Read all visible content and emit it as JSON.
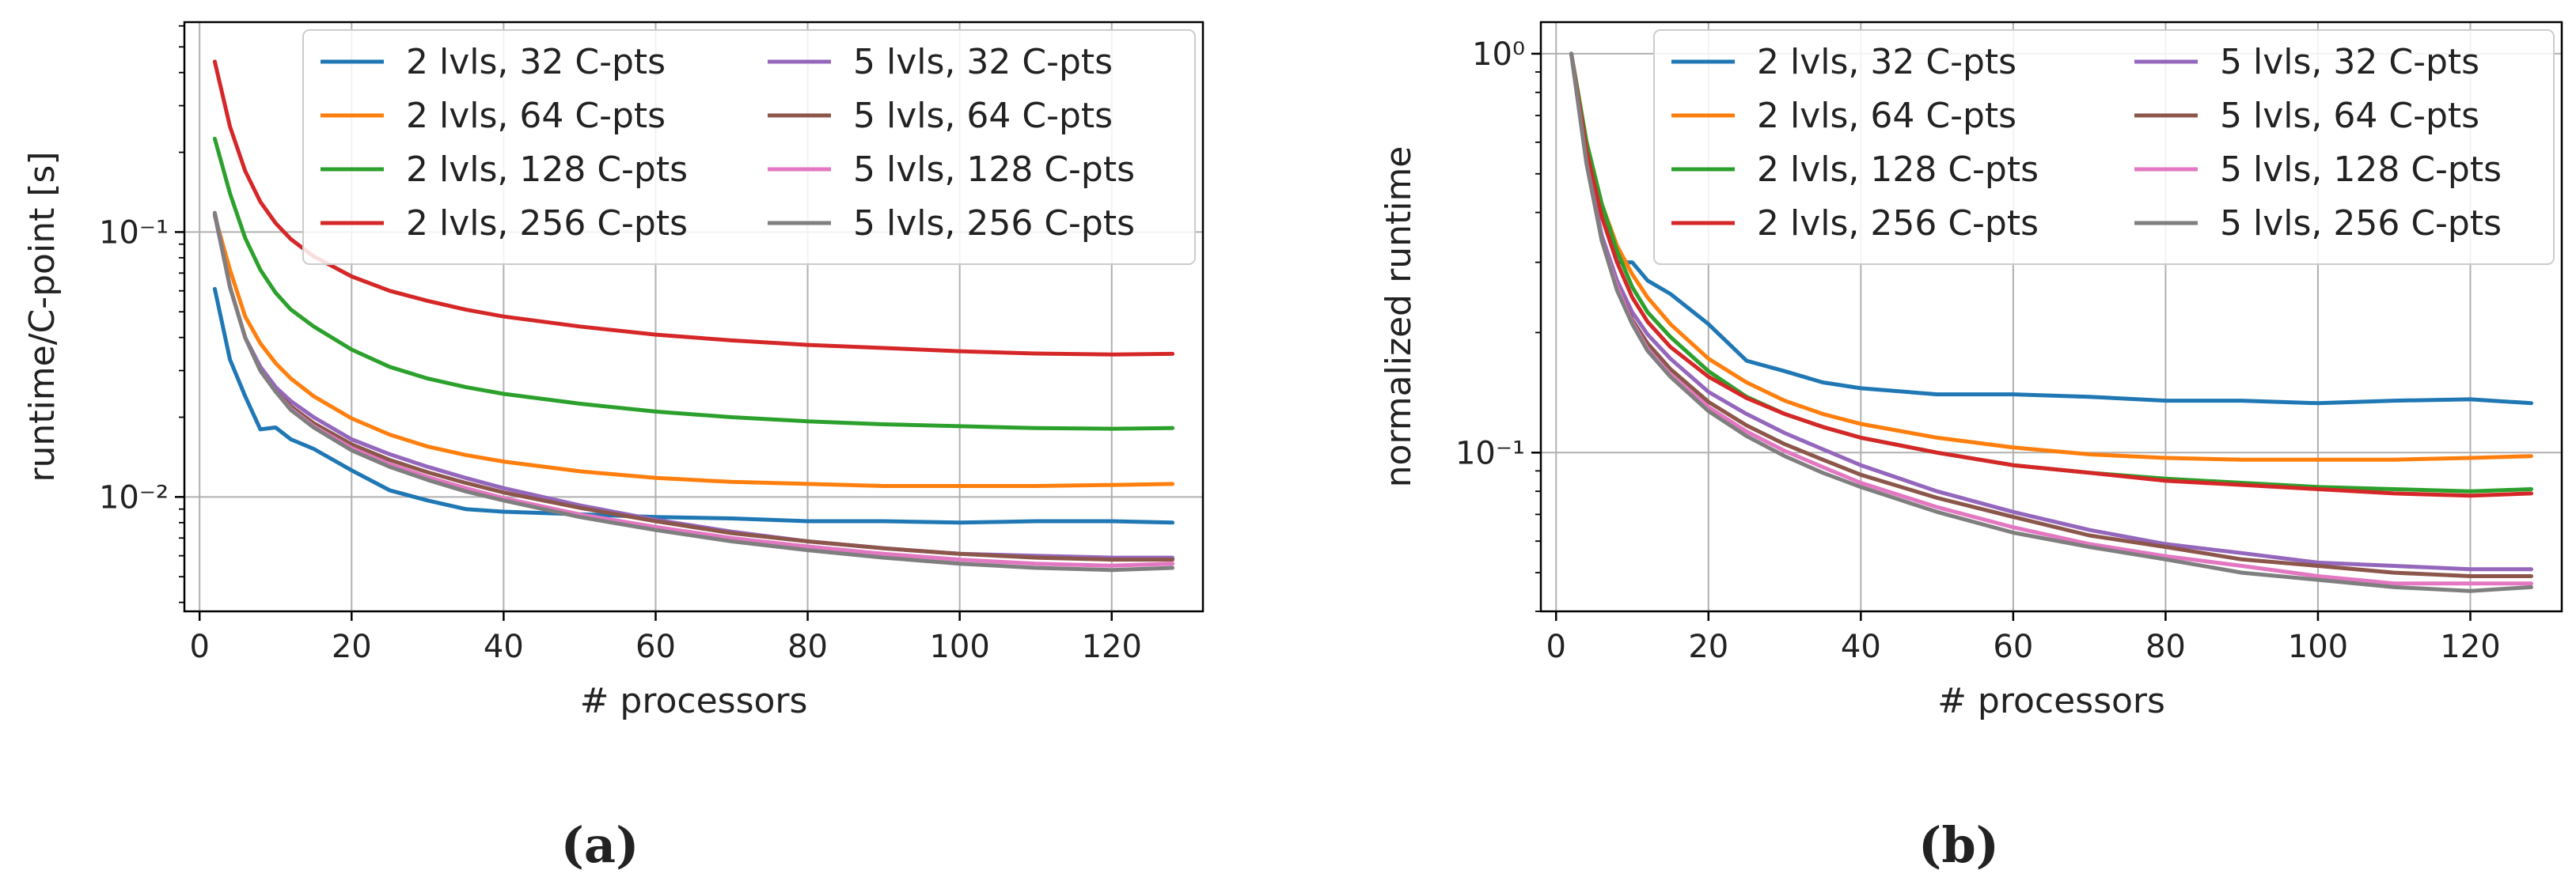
{
  "figure": {
    "captions": [
      "(a)",
      "(b)"
    ]
  },
  "colors": {
    "blue": "#1f77b4",
    "orange": "#ff7f0e",
    "green": "#2ca02c",
    "red": "#d62728",
    "purple": "#9467bd",
    "brown": "#8c564b",
    "pink": "#e377c2",
    "gray": "#7f7f7f",
    "grid": "#b0b0b0",
    "axis": "#000000"
  },
  "chart_data": [
    {
      "type": "line",
      "id": "a",
      "title": "",
      "caption": "(a)",
      "xlabel": "# processors",
      "ylabel": "runtime/C-point [s]",
      "yscale": "log",
      "xlim": [
        -2,
        132
      ],
      "ylim": [
        0.0037,
        0.62
      ],
      "xticks": [
        0,
        20,
        40,
        60,
        80,
        100,
        120
      ],
      "yticks": [
        0.01,
        0.1
      ],
      "yticklabels": [
        "10⁻²",
        "10⁻¹"
      ],
      "grid": true,
      "legend_location": "top-right",
      "legend_columns": 2,
      "series": [
        {
          "name": "2 lvls, 32 C-pts",
          "color": "blue",
          "x": [
            2,
            4,
            6,
            8,
            10,
            12,
            15,
            20,
            25,
            30,
            35,
            40,
            50,
            60,
            70,
            80,
            90,
            100,
            110,
            120,
            128
          ],
          "y": [
            0.061,
            0.033,
            0.024,
            0.018,
            0.0183,
            0.0165,
            0.0152,
            0.0126,
            0.0106,
            0.0097,
            0.009,
            0.0088,
            0.0086,
            0.0084,
            0.0083,
            0.0081,
            0.0081,
            0.008,
            0.0081,
            0.0081,
            0.008
          ]
        },
        {
          "name": "2 lvls, 64 C-pts",
          "color": "orange",
          "x": [
            2,
            4,
            6,
            8,
            10,
            12,
            15,
            20,
            25,
            30,
            35,
            40,
            50,
            60,
            70,
            80,
            90,
            100,
            110,
            120,
            128
          ],
          "y": [
            0.115,
            0.072,
            0.048,
            0.038,
            0.032,
            0.028,
            0.024,
            0.0198,
            0.0172,
            0.0155,
            0.0144,
            0.0136,
            0.0125,
            0.0118,
            0.0114,
            0.0112,
            0.011,
            0.011,
            0.011,
            0.0111,
            0.0112
          ]
        },
        {
          "name": "2 lvls, 128 C-pts",
          "color": "green",
          "x": [
            2,
            4,
            6,
            8,
            10,
            12,
            15,
            20,
            25,
            30,
            35,
            40,
            50,
            60,
            70,
            80,
            90,
            100,
            110,
            120,
            128
          ],
          "y": [
            0.225,
            0.14,
            0.095,
            0.072,
            0.059,
            0.051,
            0.044,
            0.036,
            0.031,
            0.028,
            0.026,
            0.0245,
            0.0225,
            0.021,
            0.02,
            0.0193,
            0.0188,
            0.0185,
            0.0182,
            0.0181,
            0.0182
          ]
        },
        {
          "name": "2 lvls, 256 C-pts",
          "color": "red",
          "x": [
            2,
            4,
            6,
            8,
            10,
            12,
            15,
            20,
            25,
            30,
            35,
            40,
            50,
            60,
            70,
            80,
            90,
            100,
            110,
            120,
            128
          ],
          "y": [
            0.44,
            0.25,
            0.17,
            0.13,
            0.108,
            0.094,
            0.081,
            0.068,
            0.06,
            0.055,
            0.051,
            0.048,
            0.044,
            0.041,
            0.039,
            0.0375,
            0.0365,
            0.0355,
            0.0348,
            0.0345,
            0.0347
          ]
        },
        {
          "name": "5 lvls, 32 C-pts",
          "color": "purple",
          "x": [
            2,
            4,
            6,
            8,
            10,
            12,
            15,
            20,
            25,
            30,
            35,
            40,
            50,
            60,
            70,
            80,
            90,
            100,
            110,
            120,
            128
          ],
          "y": [
            0.116,
            0.062,
            0.04,
            0.031,
            0.026,
            0.023,
            0.02,
            0.0165,
            0.0145,
            0.013,
            0.0118,
            0.0108,
            0.0093,
            0.0082,
            0.0074,
            0.0068,
            0.0064,
            0.0061,
            0.006,
            0.0059,
            0.0059
          ]
        },
        {
          "name": "5 lvls, 64 C-pts",
          "color": "brown",
          "x": [
            2,
            4,
            6,
            8,
            10,
            12,
            15,
            20,
            25,
            30,
            35,
            40,
            50,
            60,
            70,
            80,
            90,
            100,
            110,
            120,
            128
          ],
          "y": [
            0.118,
            0.062,
            0.04,
            0.03,
            0.025,
            0.022,
            0.019,
            0.0158,
            0.0138,
            0.0124,
            0.0113,
            0.0104,
            0.0091,
            0.0081,
            0.0073,
            0.0068,
            0.0064,
            0.0061,
            0.0059,
            0.0058,
            0.0058
          ]
        },
        {
          "name": "5 lvls, 128 C-pts",
          "color": "pink",
          "x": [
            2,
            4,
            6,
            8,
            10,
            12,
            15,
            20,
            25,
            30,
            35,
            40,
            50,
            60,
            70,
            80,
            90,
            100,
            110,
            120,
            128
          ],
          "y": [
            0.118,
            0.062,
            0.04,
            0.03,
            0.025,
            0.0215,
            0.0185,
            0.0153,
            0.0133,
            0.0119,
            0.0108,
            0.0099,
            0.0086,
            0.0077,
            0.007,
            0.0065,
            0.0061,
            0.0058,
            0.0056,
            0.0055,
            0.0056
          ]
        },
        {
          "name": "5 lvls, 256 C-pts",
          "color": "gray",
          "x": [
            2,
            4,
            6,
            8,
            10,
            12,
            15,
            20,
            25,
            30,
            35,
            40,
            50,
            60,
            70,
            80,
            90,
            100,
            110,
            120,
            128
          ],
          "y": [
            0.118,
            0.062,
            0.04,
            0.03,
            0.025,
            0.0213,
            0.0183,
            0.015,
            0.013,
            0.0116,
            0.0105,
            0.0097,
            0.0084,
            0.0075,
            0.0068,
            0.0063,
            0.0059,
            0.0056,
            0.0054,
            0.0053,
            0.0054
          ]
        }
      ]
    },
    {
      "type": "line",
      "id": "b",
      "title": "",
      "caption": "(b)",
      "xlabel": "# processors",
      "ylabel": "normalized runtime",
      "yscale": "log",
      "xlim": [
        -2,
        132
      ],
      "ylim": [
        0.04,
        1.2
      ],
      "xticks": [
        0,
        20,
        40,
        60,
        80,
        100,
        120
      ],
      "yticks": [
        0.1,
        1
      ],
      "yticklabels": [
        "10⁻¹",
        "10⁰"
      ],
      "grid": true,
      "legend_location": "top-right",
      "legend_columns": 2,
      "series": [
        {
          "name": "2 lvls, 32 C-pts",
          "color": "blue",
          "x": [
            2,
            4,
            6,
            8,
            10,
            12,
            15,
            20,
            25,
            30,
            35,
            40,
            50,
            60,
            70,
            80,
            90,
            100,
            110,
            120,
            128
          ],
          "y": [
            1.0,
            0.55,
            0.39,
            0.3,
            0.3,
            0.27,
            0.25,
            0.21,
            0.17,
            0.16,
            0.15,
            0.145,
            0.14,
            0.14,
            0.138,
            0.135,
            0.135,
            0.133,
            0.135,
            0.136,
            0.133
          ]
        },
        {
          "name": "2 lvls, 64 C-pts",
          "color": "orange",
          "x": [
            2,
            4,
            6,
            8,
            10,
            12,
            15,
            20,
            25,
            30,
            35,
            40,
            50,
            60,
            70,
            80,
            90,
            100,
            110,
            120,
            128
          ],
          "y": [
            1.0,
            0.6,
            0.42,
            0.33,
            0.28,
            0.245,
            0.21,
            0.172,
            0.15,
            0.135,
            0.125,
            0.118,
            0.109,
            0.103,
            0.099,
            0.097,
            0.096,
            0.096,
            0.096,
            0.097,
            0.098
          ]
        },
        {
          "name": "2 lvls, 128 C-pts",
          "color": "green",
          "x": [
            2,
            4,
            6,
            8,
            10,
            12,
            15,
            20,
            25,
            30,
            35,
            40,
            50,
            60,
            70,
            80,
            90,
            100,
            110,
            120,
            128
          ],
          "y": [
            1.0,
            0.6,
            0.42,
            0.32,
            0.26,
            0.225,
            0.195,
            0.16,
            0.138,
            0.125,
            0.116,
            0.109,
            0.1,
            0.093,
            0.089,
            0.086,
            0.084,
            0.082,
            0.081,
            0.08,
            0.081
          ]
        },
        {
          "name": "2 lvls, 256 C-pts",
          "color": "red",
          "x": [
            2,
            4,
            6,
            8,
            10,
            12,
            15,
            20,
            25,
            30,
            35,
            40,
            50,
            60,
            70,
            80,
            90,
            100,
            110,
            120,
            128
          ],
          "y": [
            1.0,
            0.57,
            0.39,
            0.3,
            0.245,
            0.213,
            0.184,
            0.155,
            0.137,
            0.125,
            0.116,
            0.109,
            0.1,
            0.093,
            0.089,
            0.085,
            0.083,
            0.081,
            0.079,
            0.078,
            0.079
          ]
        },
        {
          "name": "5 lvls, 32 C-pts",
          "color": "purple",
          "x": [
            2,
            4,
            6,
            8,
            10,
            12,
            15,
            20,
            25,
            30,
            35,
            40,
            50,
            60,
            70,
            80,
            90,
            100,
            110,
            120,
            128
          ],
          "y": [
            1.0,
            0.53,
            0.35,
            0.27,
            0.225,
            0.198,
            0.172,
            0.142,
            0.125,
            0.112,
            0.102,
            0.093,
            0.08,
            0.071,
            0.064,
            0.059,
            0.056,
            0.053,
            0.052,
            0.051,
            0.051
          ]
        },
        {
          "name": "5 lvls, 64 C-pts",
          "color": "brown",
          "x": [
            2,
            4,
            6,
            8,
            10,
            12,
            15,
            20,
            25,
            30,
            35,
            40,
            50,
            60,
            70,
            80,
            90,
            100,
            110,
            120,
            128
          ],
          "y": [
            1.0,
            0.53,
            0.34,
            0.26,
            0.215,
            0.188,
            0.162,
            0.134,
            0.117,
            0.105,
            0.096,
            0.088,
            0.077,
            0.069,
            0.062,
            0.058,
            0.054,
            0.052,
            0.05,
            0.049,
            0.049
          ]
        },
        {
          "name": "5 lvls, 128 C-pts",
          "color": "pink",
          "x": [
            2,
            4,
            6,
            8,
            10,
            12,
            15,
            20,
            25,
            30,
            35,
            40,
            50,
            60,
            70,
            80,
            90,
            100,
            110,
            120,
            128
          ],
          "y": [
            1.0,
            0.53,
            0.34,
            0.26,
            0.212,
            0.182,
            0.157,
            0.13,
            0.113,
            0.101,
            0.092,
            0.084,
            0.073,
            0.065,
            0.059,
            0.055,
            0.052,
            0.049,
            0.047,
            0.047,
            0.047
          ]
        },
        {
          "name": "5 lvls, 256 C-pts",
          "color": "gray",
          "x": [
            2,
            4,
            6,
            8,
            10,
            12,
            15,
            20,
            25,
            30,
            35,
            40,
            50,
            60,
            70,
            80,
            90,
            100,
            110,
            120,
            128
          ],
          "y": [
            1.0,
            0.53,
            0.34,
            0.255,
            0.21,
            0.18,
            0.155,
            0.127,
            0.11,
            0.098,
            0.089,
            0.082,
            0.071,
            0.063,
            0.058,
            0.054,
            0.05,
            0.048,
            0.046,
            0.045,
            0.046
          ]
        }
      ]
    }
  ]
}
